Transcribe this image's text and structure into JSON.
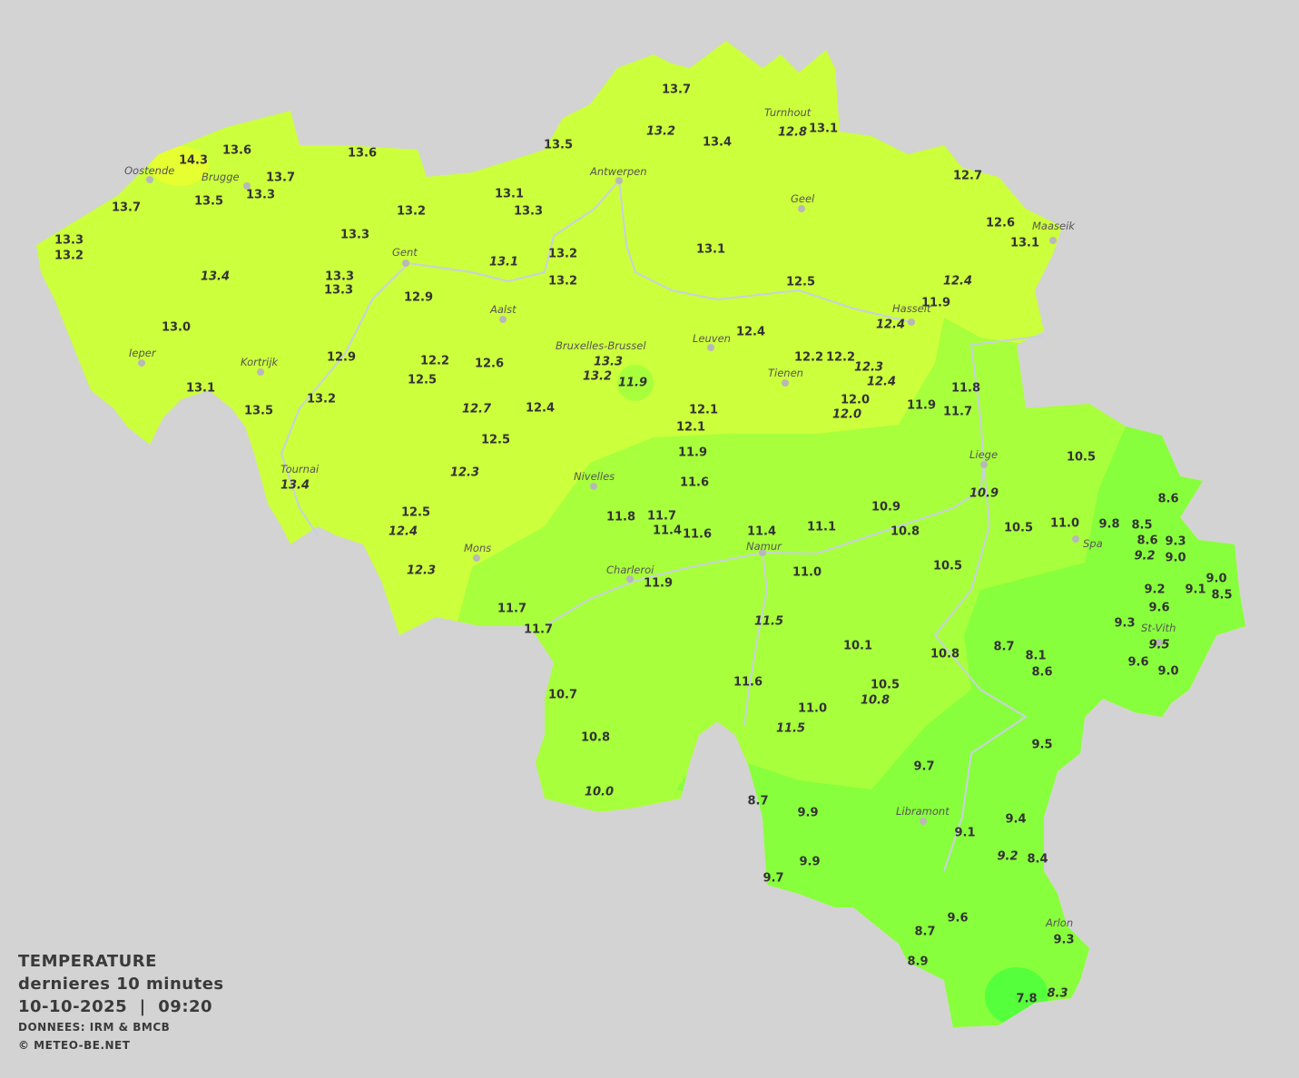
{
  "legend": {
    "title": "TEMPERATURE",
    "subtitle": "dernieres 10 minutes",
    "datetime": "10-10-2025  |  09:20",
    "source": "DONNEES: IRM & BMCB",
    "copyright": "© METEO-BE.NET"
  },
  "colors": {
    "background": "#d3d3d3",
    "zone_warm": "#ccff3c",
    "zone_mild": "#a8ff3c",
    "zone_cool": "#88ff3c",
    "zone_cold": "#55ff3c",
    "zone_hot": "#e6ff30",
    "text": "#333333",
    "rivers": "#c8d0e0"
  },
  "cities": [
    "Oostende",
    "Brugge",
    "Antwerpen",
    "Turnhout",
    "Geel",
    "Maaseik",
    "Gent",
    "Aalst",
    "Ieper",
    "Kortrijk",
    "Bruxelles-Brussel",
    "Leuven",
    "Hasselt",
    "Tienen",
    "Tournai",
    "Nivelles",
    "Liege",
    "Mons",
    "Charleroi",
    "Namur",
    "Spa",
    "St-Vith",
    "Libramont",
    "Arlon"
  ],
  "stations": [
    {
      "v": "13.7"
    },
    {
      "v": "13.2",
      "italic": true
    },
    {
      "v": "13.4"
    },
    {
      "v": "12.8",
      "italic": true
    },
    {
      "v": "13.1"
    },
    {
      "v": "13.6"
    },
    {
      "v": "14.3"
    },
    {
      "v": "13.6"
    },
    {
      "v": "13.5"
    },
    {
      "v": "13.7"
    },
    {
      "v": "13.3"
    },
    {
      "v": "13.7"
    },
    {
      "v": "13.5"
    },
    {
      "v": "13.1"
    },
    {
      "v": "13.3"
    },
    {
      "v": "13.2"
    },
    {
      "v": "12.7"
    },
    {
      "v": "12.6"
    },
    {
      "v": "13.1"
    },
    {
      "v": "13.3"
    },
    {
      "v": "13.2"
    },
    {
      "v": "13.3"
    },
    {
      "v": "13.2"
    },
    {
      "v": "13.1",
      "italic": true
    },
    {
      "v": "13.1"
    },
    {
      "v": "13.4",
      "italic": true
    },
    {
      "v": "13.3"
    },
    {
      "v": "13.3"
    },
    {
      "v": "13.2"
    },
    {
      "v": "12.5"
    },
    {
      "v": "12.4",
      "italic": true
    },
    {
      "v": "12.9"
    },
    {
      "v": "11.9"
    },
    {
      "v": "12.4"
    },
    {
      "v": "12.4",
      "italic": true
    },
    {
      "v": "13.0"
    },
    {
      "v": "12.9"
    },
    {
      "v": "12.2"
    },
    {
      "v": "12.6"
    },
    {
      "v": "13.3",
      "italic": true
    },
    {
      "v": "13.2",
      "italic": true
    },
    {
      "v": "11.9",
      "italic": true
    },
    {
      "v": "12.2"
    },
    {
      "v": "12.2"
    },
    {
      "v": "12.3",
      "italic": true
    },
    {
      "v": "12.4",
      "italic": true
    },
    {
      "v": "12.5"
    },
    {
      "v": "13.1"
    },
    {
      "v": "13.2"
    },
    {
      "v": "12.1"
    },
    {
      "v": "11.8"
    },
    {
      "v": "12.0"
    },
    {
      "v": "12.0",
      "italic": true
    },
    {
      "v": "11.9"
    },
    {
      "v": "11.7"
    },
    {
      "v": "13.5"
    },
    {
      "v": "12.7",
      "italic": true
    },
    {
      "v": "12.4"
    },
    {
      "v": "12.1"
    },
    {
      "v": "12.5"
    },
    {
      "v": "11.9"
    },
    {
      "v": "10.5"
    },
    {
      "v": "12.3",
      "italic": true
    },
    {
      "v": "13.4",
      "italic": true
    },
    {
      "v": "11.6"
    },
    {
      "v": "10.9",
      "italic": true
    },
    {
      "v": "8.6"
    },
    {
      "v": "12.5"
    },
    {
      "v": "11.8"
    },
    {
      "v": "11.7"
    },
    {
      "v": "10.9"
    },
    {
      "v": "11.4"
    },
    {
      "v": "11.6"
    },
    {
      "v": "11.4"
    },
    {
      "v": "11.1"
    },
    {
      "v": "10.8"
    },
    {
      "v": "10.5"
    },
    {
      "v": "11.0"
    },
    {
      "v": "9.8"
    },
    {
      "v": "8.5"
    },
    {
      "v": "12.4",
      "italic": true
    },
    {
      "v": "8.6"
    },
    {
      "v": "9.3"
    },
    {
      "v": "9.2",
      "italic": true
    },
    {
      "v": "9.0"
    },
    {
      "v": "12.3",
      "italic": true
    },
    {
      "v": "11.0"
    },
    {
      "v": "10.5"
    },
    {
      "v": "11.9"
    },
    {
      "v": "9.2"
    },
    {
      "v": "9.1"
    },
    {
      "v": "9.0"
    },
    {
      "v": "8.5"
    },
    {
      "v": "9.6"
    },
    {
      "v": "11.7"
    },
    {
      "v": "9.3"
    },
    {
      "v": "11.7"
    },
    {
      "v": "11.5",
      "italic": true
    },
    {
      "v": "9.5",
      "italic": true
    },
    {
      "v": "10.1"
    },
    {
      "v": "8.7"
    },
    {
      "v": "8.1"
    },
    {
      "v": "10.8"
    },
    {
      "v": "9.6"
    },
    {
      "v": "8.6"
    },
    {
      "v": "9.0"
    },
    {
      "v": "11.6"
    },
    {
      "v": "10.5"
    },
    {
      "v": "10.8",
      "italic": true
    },
    {
      "v": "10.7"
    },
    {
      "v": "11.0"
    },
    {
      "v": "11.5",
      "italic": true
    },
    {
      "v": "10.8"
    },
    {
      "v": "9.5"
    },
    {
      "v": "9.7"
    },
    {
      "v": "10.0",
      "italic": true
    },
    {
      "v": "8.7"
    },
    {
      "v": "9.9"
    },
    {
      "v": "9.4"
    },
    {
      "v": "9.1"
    },
    {
      "v": "9.2",
      "italic": true
    },
    {
      "v": "8.4"
    },
    {
      "v": "9.9"
    },
    {
      "v": "9.7"
    },
    {
      "v": "9.6"
    },
    {
      "v": "8.7"
    },
    {
      "v": "9.3"
    },
    {
      "v": "8.9"
    },
    {
      "v": "8.3",
      "italic": true
    },
    {
      "v": "7.8"
    }
  ]
}
